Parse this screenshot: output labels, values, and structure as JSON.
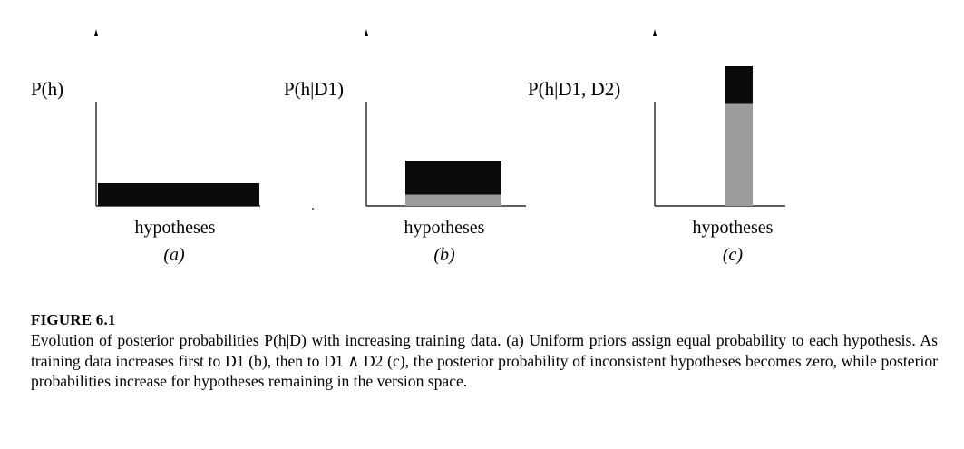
{
  "panels": [
    {
      "ylabel": "P(h)",
      "xlabel": "hypotheses",
      "tag": "(a)"
    },
    {
      "ylabel": "P(h|D1)",
      "xlabel": "hypotheses",
      "tag": "(b)"
    },
    {
      "ylabel": "P(h|D1, D2)",
      "xlabel": "hypotheses",
      "tag": "(c)"
    }
  ],
  "chart_data": [
    {
      "type": "bar",
      "title": "",
      "ylabel": "P(h)",
      "xlabel": "hypotheses",
      "description_values": {
        "uniform_width_hypotheses": 1.0,
        "probability": 0.0625,
        "gray_share": 0.0
      }
    },
    {
      "type": "bar",
      "title": "",
      "ylabel": "P(h|D1)",
      "xlabel": "hypotheses",
      "description_values": {
        "uniform_width_hypotheses": 0.5,
        "probability": 0.125,
        "gray_share": 0.25
      }
    },
    {
      "type": "bar",
      "title": "",
      "ylabel": "P(h|D1, D2)",
      "xlabel": "hypotheses",
      "description_values": {
        "uniform_width_hypotheses": 0.15,
        "probability": 0.5,
        "gray_share": 0.73
      }
    }
  ],
  "colors": {
    "bar_dark": "#0b0b0b",
    "bar_gray": "#9c9c9c",
    "axis": "#000000"
  },
  "figure_title": "FIGURE 6.1",
  "caption": "Evolution of posterior probabilities P(h|D) with increasing training data. (a) Uniform priors assign equal probability to each hypothesis. As training data increases first to D1 (b), then to D1 ∧ D2 (c), the posterior probability of inconsistent hypotheses becomes zero, while posterior probabilities increase for hypotheses remaining in the version space."
}
